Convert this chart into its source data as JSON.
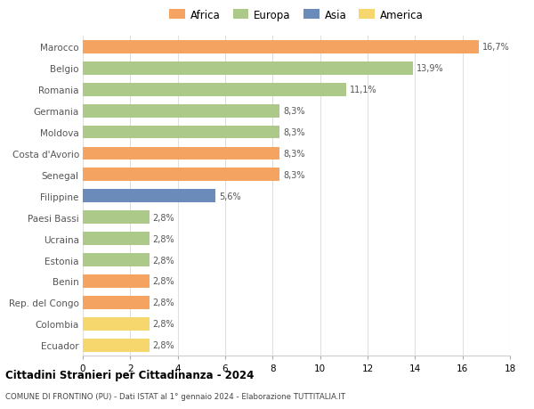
{
  "categories": [
    "Ecuador",
    "Colombia",
    "Rep. del Congo",
    "Benin",
    "Estonia",
    "Ucraina",
    "Paesi Bassi",
    "Filippine",
    "Senegal",
    "Costa d'Avorio",
    "Moldova",
    "Germania",
    "Romania",
    "Belgio",
    "Marocco"
  ],
  "values": [
    2.8,
    2.8,
    2.8,
    2.8,
    2.8,
    2.8,
    2.8,
    5.6,
    8.3,
    8.3,
    8.3,
    8.3,
    11.1,
    13.9,
    16.7
  ],
  "labels": [
    "2,8%",
    "2,8%",
    "2,8%",
    "2,8%",
    "2,8%",
    "2,8%",
    "2,8%",
    "5,6%",
    "8,3%",
    "8,3%",
    "8,3%",
    "8,3%",
    "11,1%",
    "13,9%",
    "16,7%"
  ],
  "colors": [
    "#f5d76e",
    "#f5d76e",
    "#f4a460",
    "#f4a460",
    "#adc98a",
    "#adc98a",
    "#adc98a",
    "#6b8cba",
    "#f4a460",
    "#f4a460",
    "#adc98a",
    "#adc98a",
    "#adc98a",
    "#adc98a",
    "#f4a460"
  ],
  "legend_labels": [
    "Africa",
    "Europa",
    "Asia",
    "America"
  ],
  "legend_colors": [
    "#f4a460",
    "#adc98a",
    "#6b8cba",
    "#f5d76e"
  ],
  "title": "Cittadini Stranieri per Cittadinanza - 2024",
  "subtitle": "COMUNE DI FRONTINO (PU) - Dati ISTAT al 1° gennaio 2024 - Elaborazione TUTTITALIA.IT",
  "xlim": [
    0,
    18
  ],
  "xticks": [
    0,
    2,
    4,
    6,
    8,
    10,
    12,
    14,
    16,
    18
  ],
  "background_color": "#ffffff",
  "grid_color": "#e0e0e0"
}
